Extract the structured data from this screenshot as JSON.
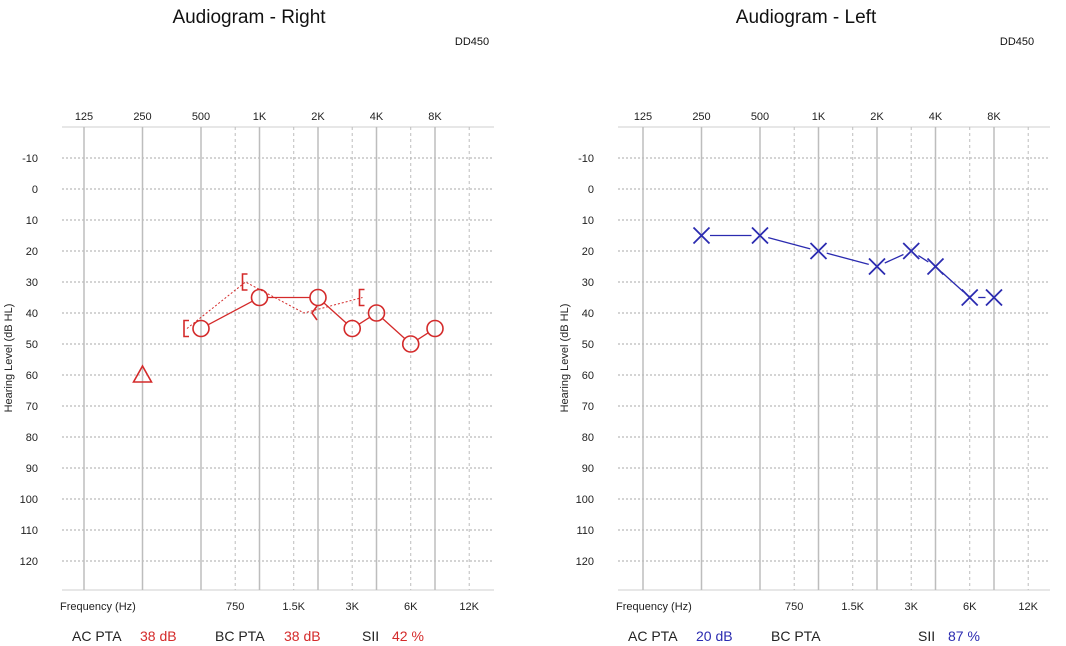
{
  "chart_data": [
    {
      "type": "scatter",
      "title": "Audiogram - Right",
      "device": "DD450",
      "ylabel": "Hearing Level (dB HL)",
      "xlabel": "Frequency (Hz)",
      "ylim": [
        -10,
        120
      ],
      "y_ticks": [
        "-10",
        "0",
        "10",
        "20",
        "30",
        "40",
        "50",
        "60",
        "70",
        "80",
        "90",
        "100",
        "110",
        "120"
      ],
      "x_top_ticks": [
        {
          "f": 125,
          "label": "125"
        },
        {
          "f": 250,
          "label": "250"
        },
        {
          "f": 500,
          "label": "500"
        },
        {
          "f": 1000,
          "label": "1K"
        },
        {
          "f": 2000,
          "label": "2K"
        },
        {
          "f": 4000,
          "label": "4K"
        },
        {
          "f": 8000,
          "label": "8K"
        }
      ],
      "x_bottom_ticks": [
        {
          "f": 750,
          "label": "750"
        },
        {
          "f": 1500,
          "label": "1.5K"
        },
        {
          "f": 3000,
          "label": "3K"
        },
        {
          "f": 6000,
          "label": "6K"
        },
        {
          "f": 12000,
          "label": "12K"
        }
      ],
      "color": "#d42a2a",
      "series": [
        {
          "kind": "ac-circle",
          "points": [
            {
              "x": 500,
              "y": 45
            },
            {
              "x": 1000,
              "y": 35
            },
            {
              "x": 2000,
              "y": 35
            },
            {
              "x": 3000,
              "y": 45
            },
            {
              "x": 4000,
              "y": 40
            },
            {
              "x": 6000,
              "y": 50
            },
            {
              "x": 8000,
              "y": 45
            }
          ]
        },
        {
          "kind": "ac-masked-triangle",
          "points": [
            {
              "x": 250,
              "y": 60
            }
          ]
        },
        {
          "kind": "bc-masked-bracket",
          "points": [
            {
              "x": 500,
              "y": 45
            },
            {
              "x": 1000,
              "y": 30
            },
            {
              "x": 4000,
              "y": 35
            }
          ]
        },
        {
          "kind": "bc-unmasked-caret",
          "points": [
            {
              "x": 2000,
              "y": 40
            }
          ]
        }
      ],
      "summary": [
        {
          "label": "AC PTA",
          "value": "38 dB"
        },
        {
          "label": "BC PTA",
          "value": "38 dB"
        },
        {
          "label": "SII",
          "value": "42 %"
        }
      ]
    },
    {
      "type": "scatter",
      "title": "Audiogram - Left",
      "device": "DD450",
      "ylabel": "Hearing Level (dB HL)",
      "xlabel": "Frequency (Hz)",
      "ylim": [
        -10,
        120
      ],
      "y_ticks": [
        "-10",
        "0",
        "10",
        "20",
        "30",
        "40",
        "50",
        "60",
        "70",
        "80",
        "90",
        "100",
        "110",
        "120"
      ],
      "x_top_ticks": [
        {
          "f": 125,
          "label": "125"
        },
        {
          "f": 250,
          "label": "250"
        },
        {
          "f": 500,
          "label": "500"
        },
        {
          "f": 1000,
          "label": "1K"
        },
        {
          "f": 2000,
          "label": "2K"
        },
        {
          "f": 4000,
          "label": "4K"
        },
        {
          "f": 8000,
          "label": "8K"
        }
      ],
      "x_bottom_ticks": [
        {
          "f": 750,
          "label": "750"
        },
        {
          "f": 1500,
          "label": "1.5K"
        },
        {
          "f": 3000,
          "label": "3K"
        },
        {
          "f": 6000,
          "label": "6K"
        },
        {
          "f": 12000,
          "label": "12K"
        }
      ],
      "color": "#2b2bb0",
      "series": [
        {
          "kind": "ac-x",
          "points": [
            {
              "x": 250,
              "y": 15
            },
            {
              "x": 500,
              "y": 15
            },
            {
              "x": 1000,
              "y": 20
            },
            {
              "x": 2000,
              "y": 25
            },
            {
              "x": 3000,
              "y": 20
            },
            {
              "x": 4000,
              "y": 25
            },
            {
              "x": 6000,
              "y": 35
            },
            {
              "x": 8000,
              "y": 35
            }
          ]
        }
      ],
      "summary": [
        {
          "label": "AC PTA",
          "value": "20 dB"
        },
        {
          "label": "BC PTA",
          "value": ""
        },
        {
          "label": "SII",
          "value": "87 %"
        }
      ]
    }
  ]
}
